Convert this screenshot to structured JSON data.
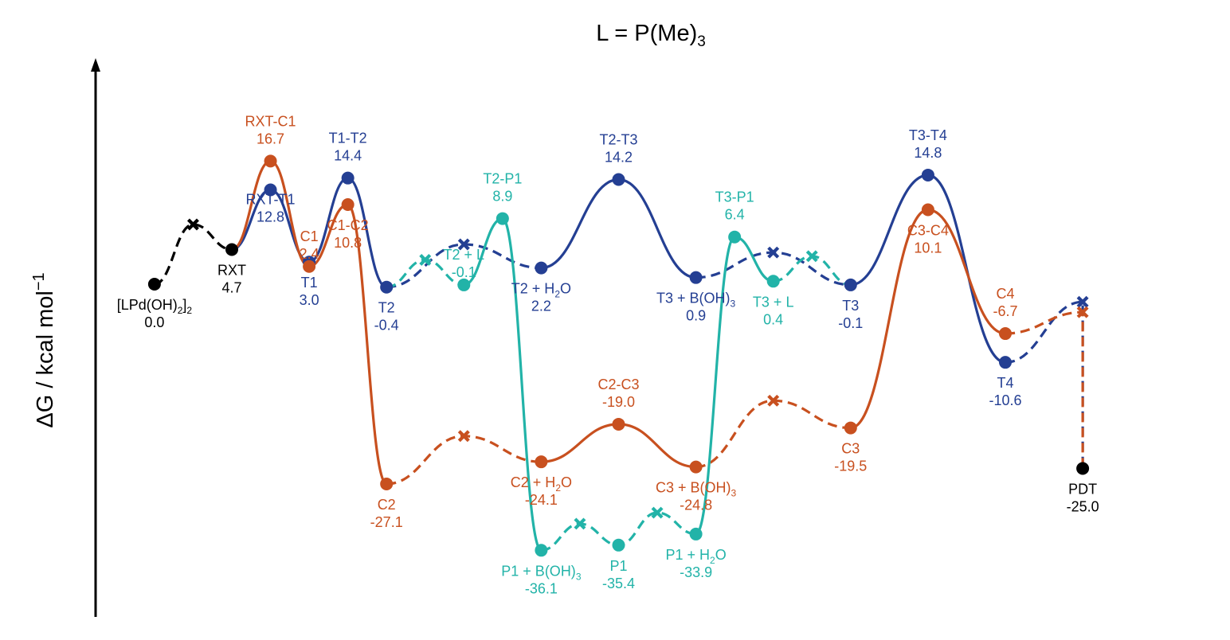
{
  "title": {
    "main": "L = P(Me)",
    "sub": "3"
  },
  "y_axis": {
    "label": "ΔG / kcal mol",
    "sup": "−1"
  },
  "colors": {
    "black": "#000000",
    "blue": "#243f93",
    "orange": "#c8501f",
    "teal": "#22b3a8"
  },
  "chart_data": {
    "type": "line",
    "title": "L = P(Me)3",
    "ylabel": "ΔG / kcal mol−1",
    "xlabel": "",
    "grid": false,
    "legend": "none",
    "ylim": [
      -40,
      22
    ],
    "x_unit": "reaction coordinate (arbitrary)",
    "points": {
      "LPdOH2": {
        "x": 1.0,
        "y": 0.0,
        "label": "[LPd(OH)2]2",
        "value": "0.0",
        "color": "black"
      },
      "RXT": {
        "x": 2.0,
        "y": 4.7,
        "label": "RXT",
        "value": "4.7",
        "color": "black"
      },
      "RXT_T1": {
        "x": 2.5,
        "y": 12.8,
        "label": "RXT-T1",
        "value": "12.8",
        "color": "blue"
      },
      "RXT_C1": {
        "x": 2.5,
        "y": 16.7,
        "label": "RXT-C1",
        "value": "16.7",
        "color": "orange"
      },
      "T1": {
        "x": 3.0,
        "y": 3.0,
        "label": "T1",
        "value": "3.0",
        "color": "blue"
      },
      "C1": {
        "x": 3.0,
        "y": 2.4,
        "label": "C1",
        "value": "2.4",
        "color": "orange"
      },
      "T1_T2": {
        "x": 3.5,
        "y": 14.4,
        "label": "T1-T2",
        "value": "14.4",
        "color": "blue"
      },
      "C1_C2": {
        "x": 3.5,
        "y": 10.8,
        "label": "C1-C2",
        "value": "10.8",
        "color": "orange"
      },
      "T2": {
        "x": 4.0,
        "y": -0.4,
        "label": "T2",
        "value": "-0.4",
        "color": "blue"
      },
      "C2": {
        "x": 4.0,
        "y": -27.1,
        "label": "C2",
        "value": "-27.1",
        "color": "orange"
      },
      "T2_L": {
        "x": 5.0,
        "y": -0.1,
        "label": "T2 + L",
        "value": "-0.1",
        "color": "teal"
      },
      "T2_P1": {
        "x": 5.5,
        "y": 8.9,
        "label": "T2-P1",
        "value": "8.9",
        "color": "teal"
      },
      "T2_H2O": {
        "x": 6.0,
        "y": 2.2,
        "label": "T2 + H2O",
        "value": "2.2",
        "color": "blue"
      },
      "C2_H2O": {
        "x": 6.0,
        "y": -24.1,
        "label": "C2 + H2O",
        "value": "-24.1",
        "color": "orange"
      },
      "P1_BOH3": {
        "x": 6.0,
        "y": -36.1,
        "label": "P1 + B(OH)3",
        "value": "-36.1",
        "color": "teal"
      },
      "T2_T3": {
        "x": 7.0,
        "y": 14.2,
        "label": "T2-T3",
        "value": "14.2",
        "color": "blue"
      },
      "C2_C3": {
        "x": 7.0,
        "y": -19.0,
        "label": "C2-C3",
        "value": "-19.0",
        "color": "orange"
      },
      "P1": {
        "x": 7.0,
        "y": -35.4,
        "label": "P1",
        "value": "-35.4",
        "color": "teal"
      },
      "T3_BOH3": {
        "x": 8.0,
        "y": 0.9,
        "label": "T3 + B(OH)3",
        "value": "0.9",
        "color": "blue"
      },
      "C3_BOH3": {
        "x": 8.0,
        "y": -24.8,
        "label": "C3 + B(OH)3",
        "value": "-24.8",
        "color": "orange"
      },
      "P1_H2O": {
        "x": 8.0,
        "y": -33.9,
        "label": "P1 + H2O",
        "value": "-33.9",
        "color": "teal"
      },
      "T3_P1": {
        "x": 8.5,
        "y": 6.4,
        "label": "T3-P1",
        "value": "6.4",
        "color": "teal"
      },
      "T3_L": {
        "x": 9.0,
        "y": 0.4,
        "label": "T3 + L",
        "value": "0.4",
        "color": "teal"
      },
      "T3": {
        "x": 10.0,
        "y": -0.1,
        "label": "T3",
        "value": "-0.1",
        "color": "blue"
      },
      "C3": {
        "x": 10.0,
        "y": -19.5,
        "label": "C3",
        "value": "-19.5",
        "color": "orange"
      },
      "T3_T4": {
        "x": 11.0,
        "y": 14.8,
        "label": "T3-T4",
        "value": "14.8",
        "color": "blue"
      },
      "C3_C4": {
        "x": 11.0,
        "y": 10.1,
        "label": "C3-C4",
        "value": "10.1",
        "color": "orange"
      },
      "T4": {
        "x": 12.0,
        "y": -10.6,
        "label": "T4",
        "value": "-10.6",
        "color": "blue"
      },
      "C4": {
        "x": 12.0,
        "y": -6.7,
        "label": "C4",
        "value": "-6.7",
        "color": "orange"
      },
      "PDT": {
        "x": 13.0,
        "y": -25.0,
        "label": "PDT",
        "value": "-25.0",
        "color": "black"
      }
    },
    "unlabeled_barriers": [
      {
        "x": 1.5,
        "y": 8.1,
        "color": "black"
      },
      {
        "x": 4.5,
        "y": 3.3,
        "color": "teal"
      },
      {
        "x": 5.0,
        "y": 5.4,
        "color": "blue"
      },
      {
        "x": 5.0,
        "y": -20.6,
        "color": "orange"
      },
      {
        "x": 6.5,
        "y": -32.5,
        "color": "teal"
      },
      {
        "x": 7.5,
        "y": -31.0,
        "color": "teal"
      },
      {
        "x": 9.0,
        "y": 4.3,
        "color": "blue"
      },
      {
        "x": 9.0,
        "y": -15.8,
        "color": "orange"
      },
      {
        "x": 9.5,
        "y": 3.8,
        "color": "teal"
      },
      {
        "x": 13.0,
        "y": -2.4,
        "color": "blue"
      },
      {
        "x": 13.0,
        "y": -3.8,
        "color": "orange"
      }
    ],
    "series": [
      {
        "color": "black",
        "segments": [
          {
            "style": "dashed",
            "path": [
              "LPdOH2",
              "X:1.5:8.1",
              "RXT"
            ]
          }
        ]
      },
      {
        "color": "blue",
        "segments": [
          {
            "style": "solid",
            "path": [
              "RXT",
              "RXT_T1",
              "T1",
              "T1_T2",
              "T2"
            ]
          },
          {
            "style": "dashed",
            "path": [
              "T2",
              "X:5.0:5.4",
              "T2_H2O"
            ]
          },
          {
            "style": "solid",
            "path": [
              "T2_H2O",
              "T2_T3",
              "T3_BOH3"
            ]
          },
          {
            "style": "dashed",
            "path": [
              "T3_BOH3",
              "X:9.0:4.3",
              "T3"
            ]
          },
          {
            "style": "solid",
            "path": [
              "T3",
              "T3_T4",
              "T4"
            ]
          },
          {
            "style": "dashed",
            "path": [
              "T4",
              "X:13.0:-2.4",
              "PDT"
            ]
          }
        ]
      },
      {
        "color": "orange",
        "segments": [
          {
            "style": "solid",
            "path": [
              "RXT",
              "RXT_C1",
              "C1",
              "C1_C2",
              "C2"
            ]
          },
          {
            "style": "dashed",
            "path": [
              "C2",
              "X:5.0:-20.6",
              "C2_H2O"
            ]
          },
          {
            "style": "solid",
            "path": [
              "C2_H2O",
              "C2_C3",
              "C3_BOH3"
            ]
          },
          {
            "style": "dashed",
            "path": [
              "C3_BOH3",
              "X:9.0:-15.8",
              "C3"
            ]
          },
          {
            "style": "solid",
            "path": [
              "C3",
              "C3_C4",
              "C4"
            ]
          },
          {
            "style": "dashed",
            "path": [
              "C4",
              "X:13.0:-3.8",
              "PDT"
            ]
          }
        ]
      },
      {
        "color": "teal",
        "segments": [
          {
            "style": "dashed",
            "path": [
              "T2",
              "X:4.5:3.3",
              "T2_L"
            ]
          },
          {
            "style": "solid",
            "path": [
              "T2_L",
              "T2_P1",
              "P1_BOH3"
            ]
          },
          {
            "style": "dashed",
            "path": [
              "P1_BOH3",
              "X:6.5:-32.5",
              "P1",
              "X:7.5:-31.0",
              "P1_H2O"
            ]
          },
          {
            "style": "solid",
            "path": [
              "P1_H2O",
              "T3_P1",
              "T3_L"
            ]
          },
          {
            "style": "dashed",
            "path": [
              "T3_L",
              "X:9.5:3.8",
              "T3"
            ]
          }
        ]
      }
    ],
    "labels": [
      {
        "point": "LPdOH2",
        "name": "[LPd(OH)",
        "sub": "2",
        "name2": "]",
        "sub2": "2",
        "pos": "below"
      },
      {
        "point": "RXT",
        "pos": "below"
      },
      {
        "point": "RXT_C1",
        "pos": "above"
      },
      {
        "point": "RXT_T1",
        "pos": "below-right"
      },
      {
        "point": "C1",
        "pos": "above-tight"
      },
      {
        "point": "T1",
        "pos": "below"
      },
      {
        "point": "T1_T2",
        "pos": "above"
      },
      {
        "point": "C1_C2",
        "pos": "below"
      },
      {
        "point": "T2",
        "pos": "below"
      },
      {
        "point": "C2",
        "pos": "below"
      },
      {
        "point": "T2_L",
        "pos": "above-tight"
      },
      {
        "point": "T2_P1",
        "pos": "above"
      },
      {
        "point": "T2_H2O",
        "name": "T2 + H",
        "sub": "2",
        "name2": "O",
        "pos": "below"
      },
      {
        "point": "C2_H2O",
        "name": "C2 + H",
        "sub": "2",
        "name2": "O",
        "pos": "below"
      },
      {
        "point": "P1_BOH3",
        "name": "P1 + B(OH)",
        "sub": "3",
        "pos": "below"
      },
      {
        "point": "T2_T3",
        "pos": "above"
      },
      {
        "point": "C2_C3",
        "pos": "above"
      },
      {
        "point": "P1",
        "pos": "below"
      },
      {
        "point": "T3_BOH3",
        "name": "T3 + B(OH)",
        "sub": "3",
        "pos": "below"
      },
      {
        "point": "C3_BOH3",
        "name": "C3 + B(OH)",
        "sub": "3",
        "pos": "below"
      },
      {
        "point": "P1_H2O",
        "name": "P1 + H",
        "sub": "2",
        "name2": "O",
        "pos": "below"
      },
      {
        "point": "T3_P1",
        "pos": "above"
      },
      {
        "point": "T3_L",
        "pos": "below"
      },
      {
        "point": "T3",
        "pos": "below"
      },
      {
        "point": "C3",
        "pos": "below"
      },
      {
        "point": "T3_T4",
        "pos": "above"
      },
      {
        "point": "C3_C4",
        "pos": "below"
      },
      {
        "point": "T4",
        "pos": "below"
      },
      {
        "point": "C4",
        "pos": "above"
      },
      {
        "point": "PDT",
        "pos": "below"
      }
    ]
  }
}
